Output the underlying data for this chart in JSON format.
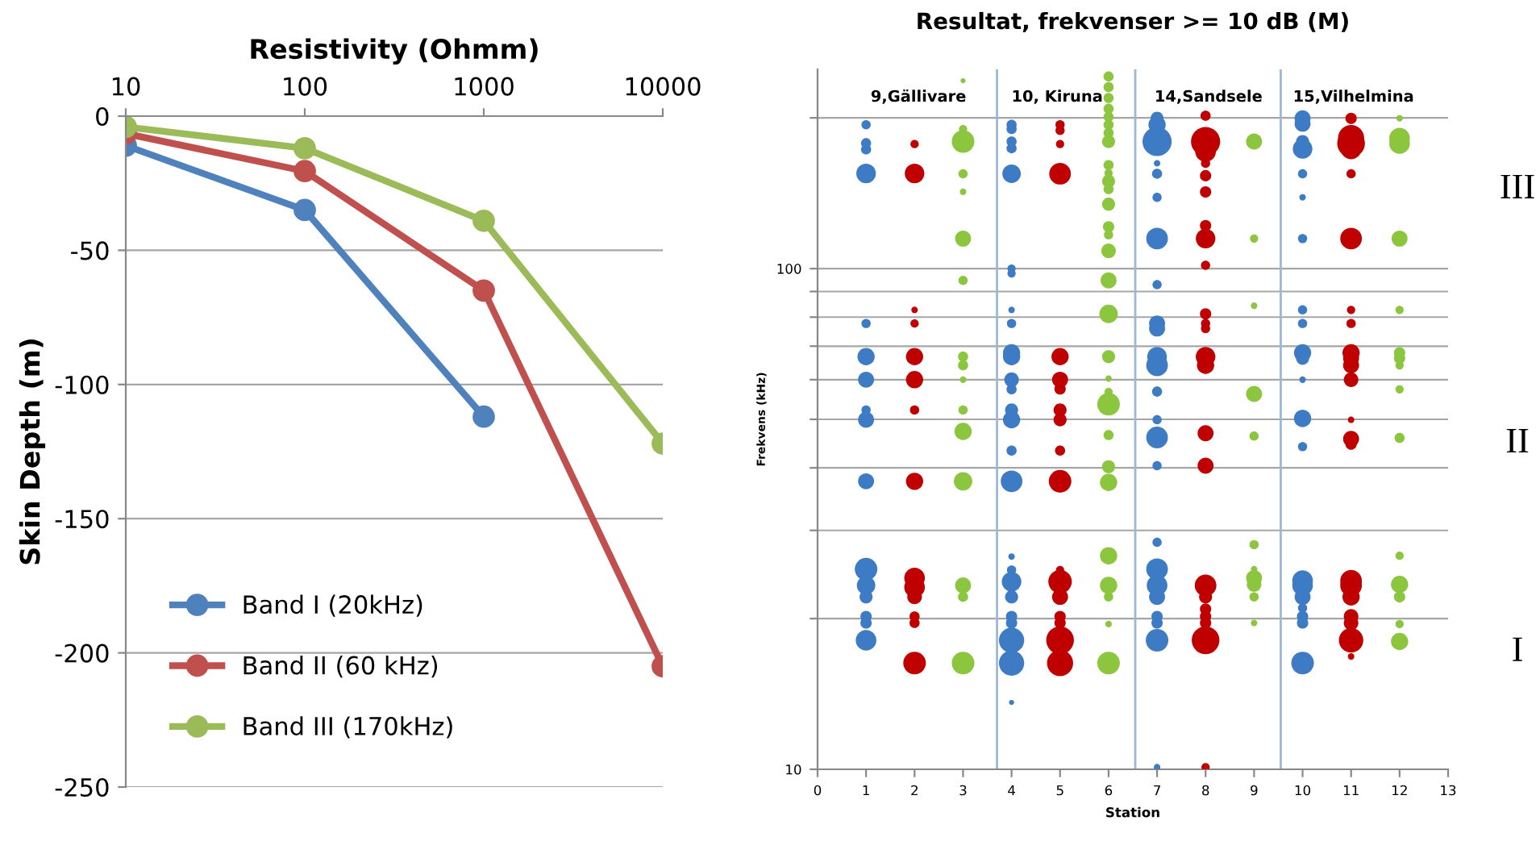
{
  "chart_data": [
    {
      "type": "line",
      "xlabel": "Resistivity (Ohmm)",
      "ylabel": "Skin Depth (m)",
      "x": [
        10,
        100,
        1000,
        10000
      ],
      "log": "x",
      "xlim": [
        10,
        10000
      ],
      "xticks": [
        10,
        100,
        1000,
        10000
      ],
      "ylim": [
        -250,
        0
      ],
      "yticks": [
        -250,
        -200,
        -150,
        -100,
        -50,
        0
      ],
      "grid": "y",
      "legend": "bottom left",
      "marker": "circle",
      "line_style": "solid",
      "series": [
        {
          "name": "Band I (20kHz)",
          "color": "#4f81bd",
          "values": [
            -11,
            -35,
            -112,
            null
          ]
        },
        {
          "name": "Band II (60 kHz)",
          "color": "#c0504d",
          "values": [
            -6.5,
            -20.5,
            -65,
            -205
          ]
        },
        {
          "name": "Band III (170kHz)",
          "color": "#9bbb59",
          "values": [
            -4,
            -12,
            -39,
            -122
          ]
        }
      ]
    },
    {
      "type": "bubble",
      "title": "Resultat, frekvenser >= 10 dB (M)",
      "xlabel": "Station",
      "ylabel": "Frekvens (kHz)",
      "log": "y",
      "xlim": [
        0,
        13
      ],
      "xticks": [
        0,
        1,
        2,
        3,
        4,
        5,
        6,
        7,
        8,
        9,
        10,
        11,
        12,
        13
      ],
      "ylim": [
        10,
        250
      ],
      "yticks": [
        10,
        {
          "value": 20,
          "label": null
        },
        {
          "value": 30,
          "label": null
        },
        {
          "value": 40,
          "label": null
        },
        {
          "value": 50,
          "label": null
        },
        {
          "value": 60,
          "label": null
        },
        {
          "value": 70,
          "label": null
        },
        {
          "value": 80,
          "label": null
        },
        {
          "value": 90,
          "label": null
        },
        100,
        {
          "value": 200,
          "label": null
        }
      ],
      "grid": "y",
      "legend": false,
      "ref_lines": [
        {
          "axis": "x",
          "value": 3.7,
          "color": "#9db7d5"
        },
        {
          "axis": "x",
          "value": 6.55,
          "color": "#9db7d5"
        },
        {
          "axis": "x",
          "value": 9.55,
          "color": "#9db7d5"
        }
      ],
      "annotations": [
        "9,Gällivare",
        "10, Kiruna",
        "14,Sandsele",
        "15,Vilhelmina",
        "III",
        "II",
        "I"
      ],
      "series": [
        {
          "color": "#3d7cc4",
          "x": [
            1,
            1,
            1,
            1,
            1,
            1,
            1,
            1,
            1,
            1,
            1,
            1,
            1,
            1,
            1,
            1,
            4,
            4,
            4,
            4,
            4,
            4,
            4,
            4,
            4,
            4,
            4,
            4,
            4,
            4,
            4,
            4,
            4,
            4,
            4,
            4,
            4,
            4,
            4,
            4,
            4,
            4,
            7,
            7,
            7,
            7,
            7,
            7,
            7,
            7,
            7,
            7,
            7,
            7,
            7,
            7,
            7,
            7,
            7,
            7,
            7,
            7,
            7,
            7,
            7,
            7,
            10,
            10,
            10,
            10,
            10,
            10,
            10,
            10,
            10,
            10,
            10,
            10,
            10,
            10,
            10,
            10,
            10,
            10,
            10,
            10,
            10
          ],
          "values": [
            193.8,
            178,
            173,
            154.9,
            77.7,
            66.7,
            60.0,
            52.2,
            49.9,
            37.6,
            25.1,
            23.3,
            22.1,
            20.2,
            19.6,
            18.1,
            193.8,
            190,
            179.4,
            173.9,
            154.7,
            100,
            97.8,
            82.7,
            77.7,
            67.9,
            66.7,
            60,
            57.4,
            52.2,
            49.9,
            43.3,
            37.6,
            26.6,
            25.0,
            23.7,
            22.1,
            20.2,
            19.6,
            18.1,
            16.3,
            13.6,
            199.6,
            193.8,
            179.4,
            162.3,
            154.7,
            138.8,
            114.8,
            92.9,
            77.7,
            75.9,
            66.7,
            64.1,
            56.8,
            49.9,
            46.0,
            40.4,
            28.4,
            25.1,
            23.3,
            22.1,
            20.2,
            19.6,
            18.1,
            10.1,
            199.6,
            194.7,
            179.4,
            173.4,
            154.7,
            138.8,
            114.8,
            82.7,
            77.7,
            67.9,
            66.2,
            60,
            50.2,
            44.1,
            23.8,
            23.3,
            22.1,
            21.0,
            20.2,
            19.6,
            16.3
          ],
          "sizes": [
            0.1,
            0.12,
            0.12,
            0.45,
            0.1,
            0.35,
            0.3,
            0.1,
            0.3,
            0.3,
            0.6,
            0.4,
            0.2,
            0.15,
            0.15,
            0.5,
            0.12,
            0.12,
            0.12,
            0.12,
            0.4,
            0.08,
            0.08,
            0.05,
            0.1,
            0.35,
            0.35,
            0.25,
            0.12,
            0.2,
            0.35,
            0.12,
            0.55,
            0.05,
            0.1,
            0.45,
            0.2,
            0.15,
            0.15,
            0.75,
            0.75,
            0.03,
            0.2,
            0.35,
            1,
            0.05,
            0.12,
            0.1,
            0.55,
            0.1,
            0.3,
            0.3,
            0.45,
            0.55,
            0.12,
            0.1,
            0.55,
            0.1,
            0.1,
            0.55,
            0.5,
            0.3,
            0.15,
            0.15,
            0.6,
            0.05,
            0.3,
            0.3,
            0.2,
            0.45,
            0.1,
            0.05,
            0.1,
            0.1,
            0.1,
            0.35,
            0.2,
            0.05,
            0.35,
            0.1,
            0.5,
            0.5,
            0.3,
            0.1,
            0.15,
            0.15,
            0.6
          ]
        },
        {
          "color": "#c00000",
          "x": [
            2,
            2,
            2,
            2,
            2,
            2,
            2,
            2,
            2,
            2,
            2,
            2,
            2,
            2,
            5,
            5,
            5,
            5,
            5,
            5,
            5,
            5,
            5,
            5,
            5,
            5,
            5,
            5,
            5,
            5,
            5,
            5,
            8,
            8,
            8,
            8,
            8,
            8,
            8,
            8,
            8,
            8,
            8,
            8,
            8,
            8,
            8,
            8,
            8,
            8,
            8,
            8,
            8,
            8,
            8,
            11,
            11,
            11,
            11,
            11,
            11,
            11,
            11,
            11,
            11,
            11,
            11,
            11,
            11,
            11,
            11,
            11,
            11,
            11,
            11,
            11,
            11
          ],
          "values": [
            177.3,
            154.9,
            82.7,
            77.7,
            66.7,
            60,
            52.2,
            37.6,
            24.1,
            23.1,
            22.1,
            20.2,
            19.6,
            16.3,
            193.8,
            188.8,
            177.3,
            154.7,
            66.7,
            60,
            57.5,
            52.2,
            49.9,
            43.3,
            37.6,
            25.0,
            23.7,
            22.1,
            20.2,
            19.6,
            18.1,
            16.3,
            202,
            179.4,
            171.3,
            162.3,
            153.3,
            142.3,
            121.9,
            114.8,
            101.5,
            81.2,
            77.7,
            75.9,
            66.7,
            64.1,
            46.9,
            40.4,
            23.3,
            22.1,
            20.9,
            20.2,
            19.6,
            18.1,
            10.1,
            199.6,
            182.2,
            177.8,
            173.4,
            154.7,
            114.8,
            82.7,
            77.7,
            67.9,
            66.2,
            64.1,
            60,
            49.9,
            45.7,
            44.6,
            23.8,
            23.3,
            22.1,
            20.2,
            19.6,
            18.1,
            16.8
          ],
          "sizes": [
            0.08,
            0.45,
            0.05,
            0.08,
            0.35,
            0.35,
            0.1,
            0.35,
            0.5,
            0.5,
            0.25,
            0.12,
            0.12,
            0.6,
            0.1,
            0.1,
            0.08,
            0.55,
            0.35,
            0.3,
            0.15,
            0.2,
            0.2,
            0.12,
            0.6,
            0.08,
            0.65,
            0.3,
            0.15,
            0.15,
            0.9,
            0.8,
            0.12,
            1,
            0.5,
            0.1,
            0.15,
            0.15,
            0.15,
            0.45,
            0.1,
            0.15,
            0.1,
            0.1,
            0.45,
            0.35,
            0.3,
            0.3,
            0.55,
            0.2,
            0.15,
            0.15,
            0.15,
            0.9,
            0.08,
            0.15,
            0.8,
            0.9,
            0.5,
            0.1,
            0.55,
            0.08,
            0.1,
            0.35,
            0.3,
            0.3,
            0.25,
            0.05,
            0.3,
            0.15,
            0.55,
            0.55,
            0.35,
            0.25,
            0.25,
            0.7,
            0.05
          ]
        },
        {
          "color": "#8cc63f",
          "x": [
            3,
            3,
            3,
            3,
            3,
            3,
            3,
            3,
            3,
            3,
            3,
            3,
            3,
            3,
            3,
            3,
            6,
            6,
            6,
            6,
            6,
            6,
            6,
            6,
            6,
            6,
            6,
            6,
            6,
            6,
            6,
            6,
            6,
            6,
            6,
            6,
            6,
            6,
            6,
            6,
            6,
            6,
            6,
            6,
            6,
            6,
            9,
            9,
            9,
            9,
            9,
            9,
            9,
            9,
            9,
            9,
            9,
            12,
            12,
            12,
            12,
            12,
            12,
            12,
            12,
            12,
            12,
            12,
            12,
            12,
            12,
            12
          ],
          "values": [
            237.3,
            190,
            179.4,
            154.7,
            142.4,
            114.8,
            94.7,
            66.7,
            64.1,
            60,
            52.2,
            47.3,
            37.6,
            23.3,
            22.1,
            16.3,
            241.9,
            230.4,
            219.2,
            208.6,
            201.0,
            193.8,
            186.7,
            179.4,
            161,
            155.1,
            149.5,
            144.1,
            134.5,
            121.2,
            116.8,
            108.5,
            94.7,
            81.2,
            66.7,
            60.3,
            56.7,
            53.6,
            46.5,
            40.2,
            37.4,
            26.7,
            23.3,
            22.1,
            19.5,
            16.3,
            179.4,
            114.8,
            84.3,
            56.2,
            46.3,
            28.1,
            25.1,
            24.1,
            23.4,
            22.1,
            19.6,
            199.6,
            182.2,
            177.8,
            114.8,
            82.7,
            67.9,
            66.2,
            64.1,
            57.4,
            45.9,
            26.7,
            23.4,
            22.1,
            19.5,
            18.0
          ],
          "sizes": [
            0.03,
            0.08,
            0.6,
            0.1,
            0.05,
            0.3,
            0.1,
            0.12,
            0.12,
            0.05,
            0.1,
            0.35,
            0.4,
            0.3,
            0.12,
            0.6,
            0.12,
            0.12,
            0.12,
            0.12,
            0.12,
            0.12,
            0.12,
            0.2,
            0.12,
            0.08,
            0.2,
            0.12,
            0.2,
            0.15,
            0.1,
            0.25,
            0.3,
            0.4,
            0.2,
            0.05,
            0.08,
            0.6,
            0.12,
            0.2,
            0.35,
            0.35,
            0.35,
            0.1,
            0.05,
            0.6,
            0.3,
            0.08,
            0.05,
            0.3,
            0.1,
            0.1,
            0.05,
            0.3,
            0.25,
            0.1,
            0.05,
            0.05,
            0.5,
            0.5,
            0.3,
            0.08,
            0.15,
            0.15,
            0.08,
            0.08,
            0.12,
            0.08,
            0.35,
            0.15,
            0.08,
            0.35
          ]
        }
      ]
    }
  ]
}
